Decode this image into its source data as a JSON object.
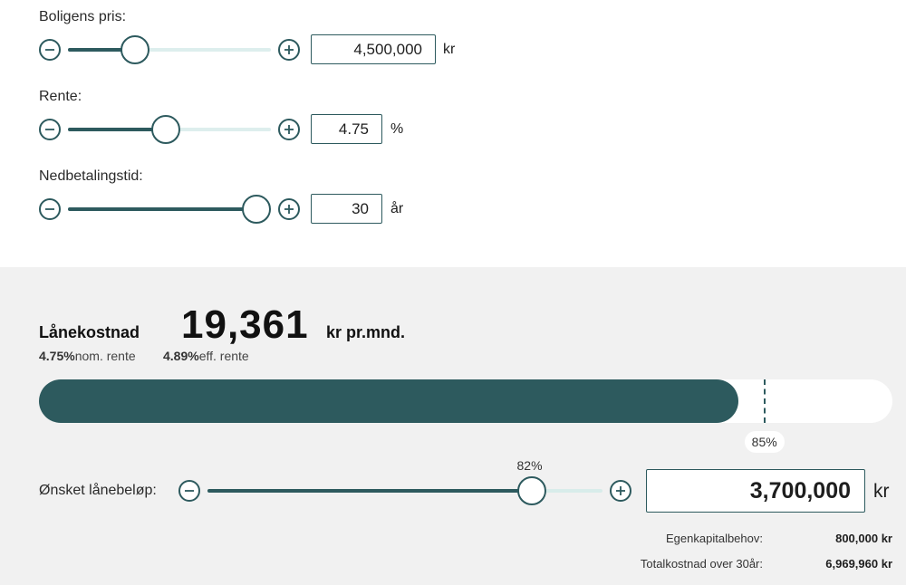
{
  "sliders": [
    {
      "label": "Boligens pris:",
      "value": "4,500,000",
      "unit": "kr",
      "level": 0.33
    },
    {
      "label": "Rente:",
      "value": "4.75",
      "unit": "%",
      "level": 0.48
    },
    {
      "label": "Nedbetalingstid:",
      "value": "30",
      "unit": "år",
      "level": 0.93
    }
  ],
  "cost": {
    "title": "Lånekostnad",
    "amount": "19,361",
    "suffix": "kr pr.mnd.",
    "nominal_rate": "4.75%",
    "nominal_label": "nom. rente",
    "effective_rate": "4.89%",
    "effective_label": "eff. rente"
  },
  "loan_bar": {
    "fill_fraction": 0.82,
    "marker_fraction": 0.85,
    "marker_label": "85%"
  },
  "loan": {
    "label": "Ønsket lånebeløp:",
    "percent_label": "82%",
    "level": 0.82,
    "value": "3,700,000",
    "unit": "kr"
  },
  "summary": [
    {
      "label": "Egenkapitalbehov:",
      "value": "800,000 kr"
    },
    {
      "label": "Totalkostnad over 30år:",
      "value": "6,969,960 kr"
    }
  ],
  "icons": {
    "decrease": "minus-circle-icon",
    "increase": "plus-circle-icon"
  },
  "colors": {
    "accent": "#2d5a5e",
    "track": "#ddeeed",
    "panel": "#f1f1f1"
  }
}
